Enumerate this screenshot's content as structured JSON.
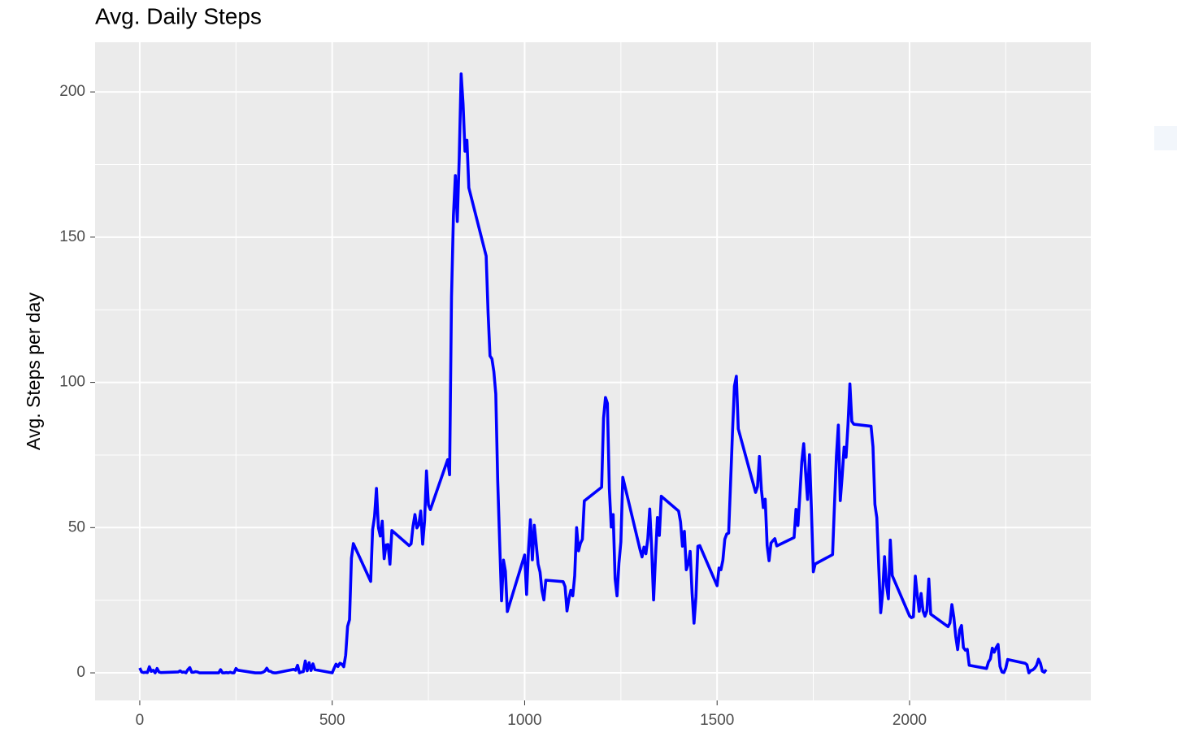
{
  "chart_data": {
    "type": "line",
    "title": "Avg. Daily Steps",
    "y_label": "Avg. Steps per day",
    "x": [
      0,
      5,
      10,
      15,
      20,
      25,
      30,
      35,
      40,
      45,
      50,
      55,
      100,
      105,
      110,
      115,
      120,
      125,
      130,
      135,
      140,
      145,
      150,
      155,
      200,
      205,
      210,
      215,
      220,
      225,
      230,
      235,
      240,
      245,
      250,
      255,
      300,
      305,
      310,
      315,
      320,
      325,
      330,
      335,
      340,
      345,
      350,
      355,
      400,
      405,
      410,
      415,
      420,
      425,
      430,
      435,
      440,
      445,
      450,
      455,
      500,
      505,
      510,
      515,
      520,
      525,
      530,
      535,
      540,
      545,
      550,
      555,
      600,
      605,
      610,
      615,
      620,
      625,
      630,
      635,
      640,
      645,
      650,
      655,
      700,
      705,
      710,
      715,
      720,
      725,
      730,
      735,
      740,
      745,
      750,
      755,
      800,
      805,
      810,
      815,
      820,
      825,
      830,
      835,
      840,
      845,
      850,
      855,
      900,
      905,
      910,
      915,
      920,
      925,
      930,
      935,
      940,
      945,
      950,
      955,
      1000,
      1005,
      1010,
      1015,
      1020,
      1025,
      1030,
      1035,
      1040,
      1045,
      1050,
      1055,
      1100,
      1105,
      1110,
      1115,
      1120,
      1125,
      1130,
      1135,
      1140,
      1145,
      1150,
      1155,
      1200,
      1205,
      1210,
      1215,
      1220,
      1225,
      1230,
      1235,
      1240,
      1245,
      1250,
      1255,
      1300,
      1305,
      1310,
      1315,
      1320,
      1325,
      1330,
      1335,
      1340,
      1345,
      1350,
      1355,
      1400,
      1405,
      1410,
      1415,
      1420,
      1425,
      1430,
      1435,
      1440,
      1445,
      1450,
      1455,
      1500,
      1505,
      1510,
      1515,
      1520,
      1525,
      1530,
      1535,
      1540,
      1545,
      1550,
      1555,
      1600,
      1605,
      1610,
      1615,
      1620,
      1625,
      1630,
      1635,
      1640,
      1645,
      1650,
      1655,
      1700,
      1705,
      1710,
      1715,
      1720,
      1725,
      1730,
      1735,
      1740,
      1745,
      1750,
      1755,
      1800,
      1805,
      1810,
      1815,
      1820,
      1825,
      1830,
      1835,
      1840,
      1845,
      1850,
      1855,
      1900,
      1905,
      1910,
      1915,
      1920,
      1925,
      1930,
      1935,
      1940,
      1945,
      1950,
      1955,
      2000,
      2005,
      2010,
      2015,
      2020,
      2025,
      2030,
      2035,
      2040,
      2045,
      2050,
      2055,
      2100,
      2105,
      2110,
      2115,
      2120,
      2125,
      2130,
      2135,
      2140,
      2145,
      2150,
      2155,
      2200,
      2205,
      2210,
      2215,
      2220,
      2225,
      2230,
      2235,
      2240,
      2245,
      2250,
      2255,
      2300,
      2305,
      2310,
      2315,
      2320,
      2325,
      2330,
      2335,
      2340,
      2345,
      2350,
      2355
    ],
    "series": [
      {
        "color": "#0000ff",
        "values": [
          1.7,
          0.3,
          0.1,
          0.2,
          0.1,
          2.1,
          0.5,
          0.9,
          0,
          1.5,
          0.3,
          0.1,
          0.3,
          0.7,
          0.2,
          0.3,
          0,
          1.1,
          1.8,
          0.2,
          0.2,
          0.4,
          0.3,
          0,
          0,
          0,
          1.1,
          0,
          0,
          0.1,
          0,
          0.2,
          0,
          0,
          1.5,
          0.9,
          0,
          0,
          0,
          0,
          0.2,
          0.6,
          1.6,
          0.6,
          0.5,
          0.1,
          0,
          0,
          1.2,
          0.9,
          2.6,
          0,
          0.3,
          0.4,
          4.1,
          0.7,
          3.5,
          0.8,
          3.1,
          1.1,
          0,
          1.6,
          3,
          2.2,
          3.3,
          3,
          2.1,
          6.1,
          16,
          18.3,
          39.5,
          44.5,
          31.5,
          49.3,
          53.8,
          63.5,
          50,
          47.1,
          52.2,
          39.3,
          44,
          44.2,
          37.4,
          49,
          43.8,
          44.4,
          50.5,
          54.5,
          49.9,
          51,
          55.7,
          44.3,
          52.3,
          69.5,
          57.8,
          56.2,
          73.4,
          68.2,
          129.4,
          157.5,
          171.2,
          155.4,
          177.3,
          206.2,
          195.9,
          179.6,
          183.4,
          167,
          143.5,
          124,
          109.1,
          108.1,
          103.7,
          96,
          66.2,
          45.2,
          24.8,
          38.8,
          35,
          21.1,
          40.6,
          27,
          42.4,
          52.7,
          38.9,
          50.8,
          44.3,
          37.4,
          34.7,
          28.3,
          25.1,
          31.9,
          31.4,
          29.7,
          21.3,
          25.5,
          28.4,
          26.5,
          33.4,
          50,
          42,
          44.6,
          46,
          59.2,
          63.9,
          87.7,
          94.8,
          92.8,
          63.4,
          50.2,
          54.5,
          32.4,
          26.5,
          37.7,
          45.1,
          67.3,
          42.3,
          39.9,
          43.3,
          41,
          46.2,
          56.4,
          42.7,
          25.1,
          40,
          53.5,
          47.3,
          60.8,
          55.7,
          52,
          43.6,
          48.7,
          35.5,
          37.5,
          41.8,
          27.5,
          17.1,
          26.1,
          43.6,
          43.8,
          30,
          36.1,
          35.5,
          38.8,
          46,
          47.8,
          48.1,
          65.3,
          82.9,
          98.7,
          102.1,
          84,
          62.1,
          64.1,
          74.5,
          63.2,
          56.9,
          59.8,
          43.9,
          38.6,
          44.7,
          45.5,
          46.2,
          43.7,
          46.6,
          56.3,
          50.7,
          61.2,
          72.7,
          78.9,
          68.9,
          59.7,
          75.1,
          56.5,
          34.8,
          37.5,
          40.7,
          58,
          74.7,
          85.3,
          59.3,
          67.8,
          77.7,
          74.2,
          85.3,
          99.5,
          86.6,
          85.6,
          84.9,
          77.8,
          58,
          53.4,
          36.3,
          20.7,
          27.4,
          40,
          30.2,
          25.5,
          45.7,
          33.5,
          19.6,
          19,
          19.3,
          33.3,
          26.8,
          21.2,
          27.3,
          21.3,
          19.5,
          21.3,
          32.3,
          20.2,
          15.9,
          17.2,
          23.5,
          19.2,
          12.5,
          8,
          14.7,
          16.3,
          8.7,
          7.8,
          8.1,
          2.6,
          1.5,
          3.7,
          4.8,
          8.5,
          7.1,
          8.7,
          9.8,
          2.2,
          0.3,
          0.1,
          1.6,
          4.6,
          3.3,
          2.8,
          0,
          0.8,
          1,
          1.6,
          2.6,
          4.7,
          3.3,
          0.6,
          0.2,
          1.1
        ]
      }
    ],
    "xlim": [
      -116,
      2471
    ],
    "ylim": [
      -9.5,
      217.1
    ],
    "xticks": [
      0,
      500,
      1000,
      1500,
      2000
    ],
    "yticks": [
      0,
      50,
      100,
      150,
      200
    ],
    "grid": true
  }
}
